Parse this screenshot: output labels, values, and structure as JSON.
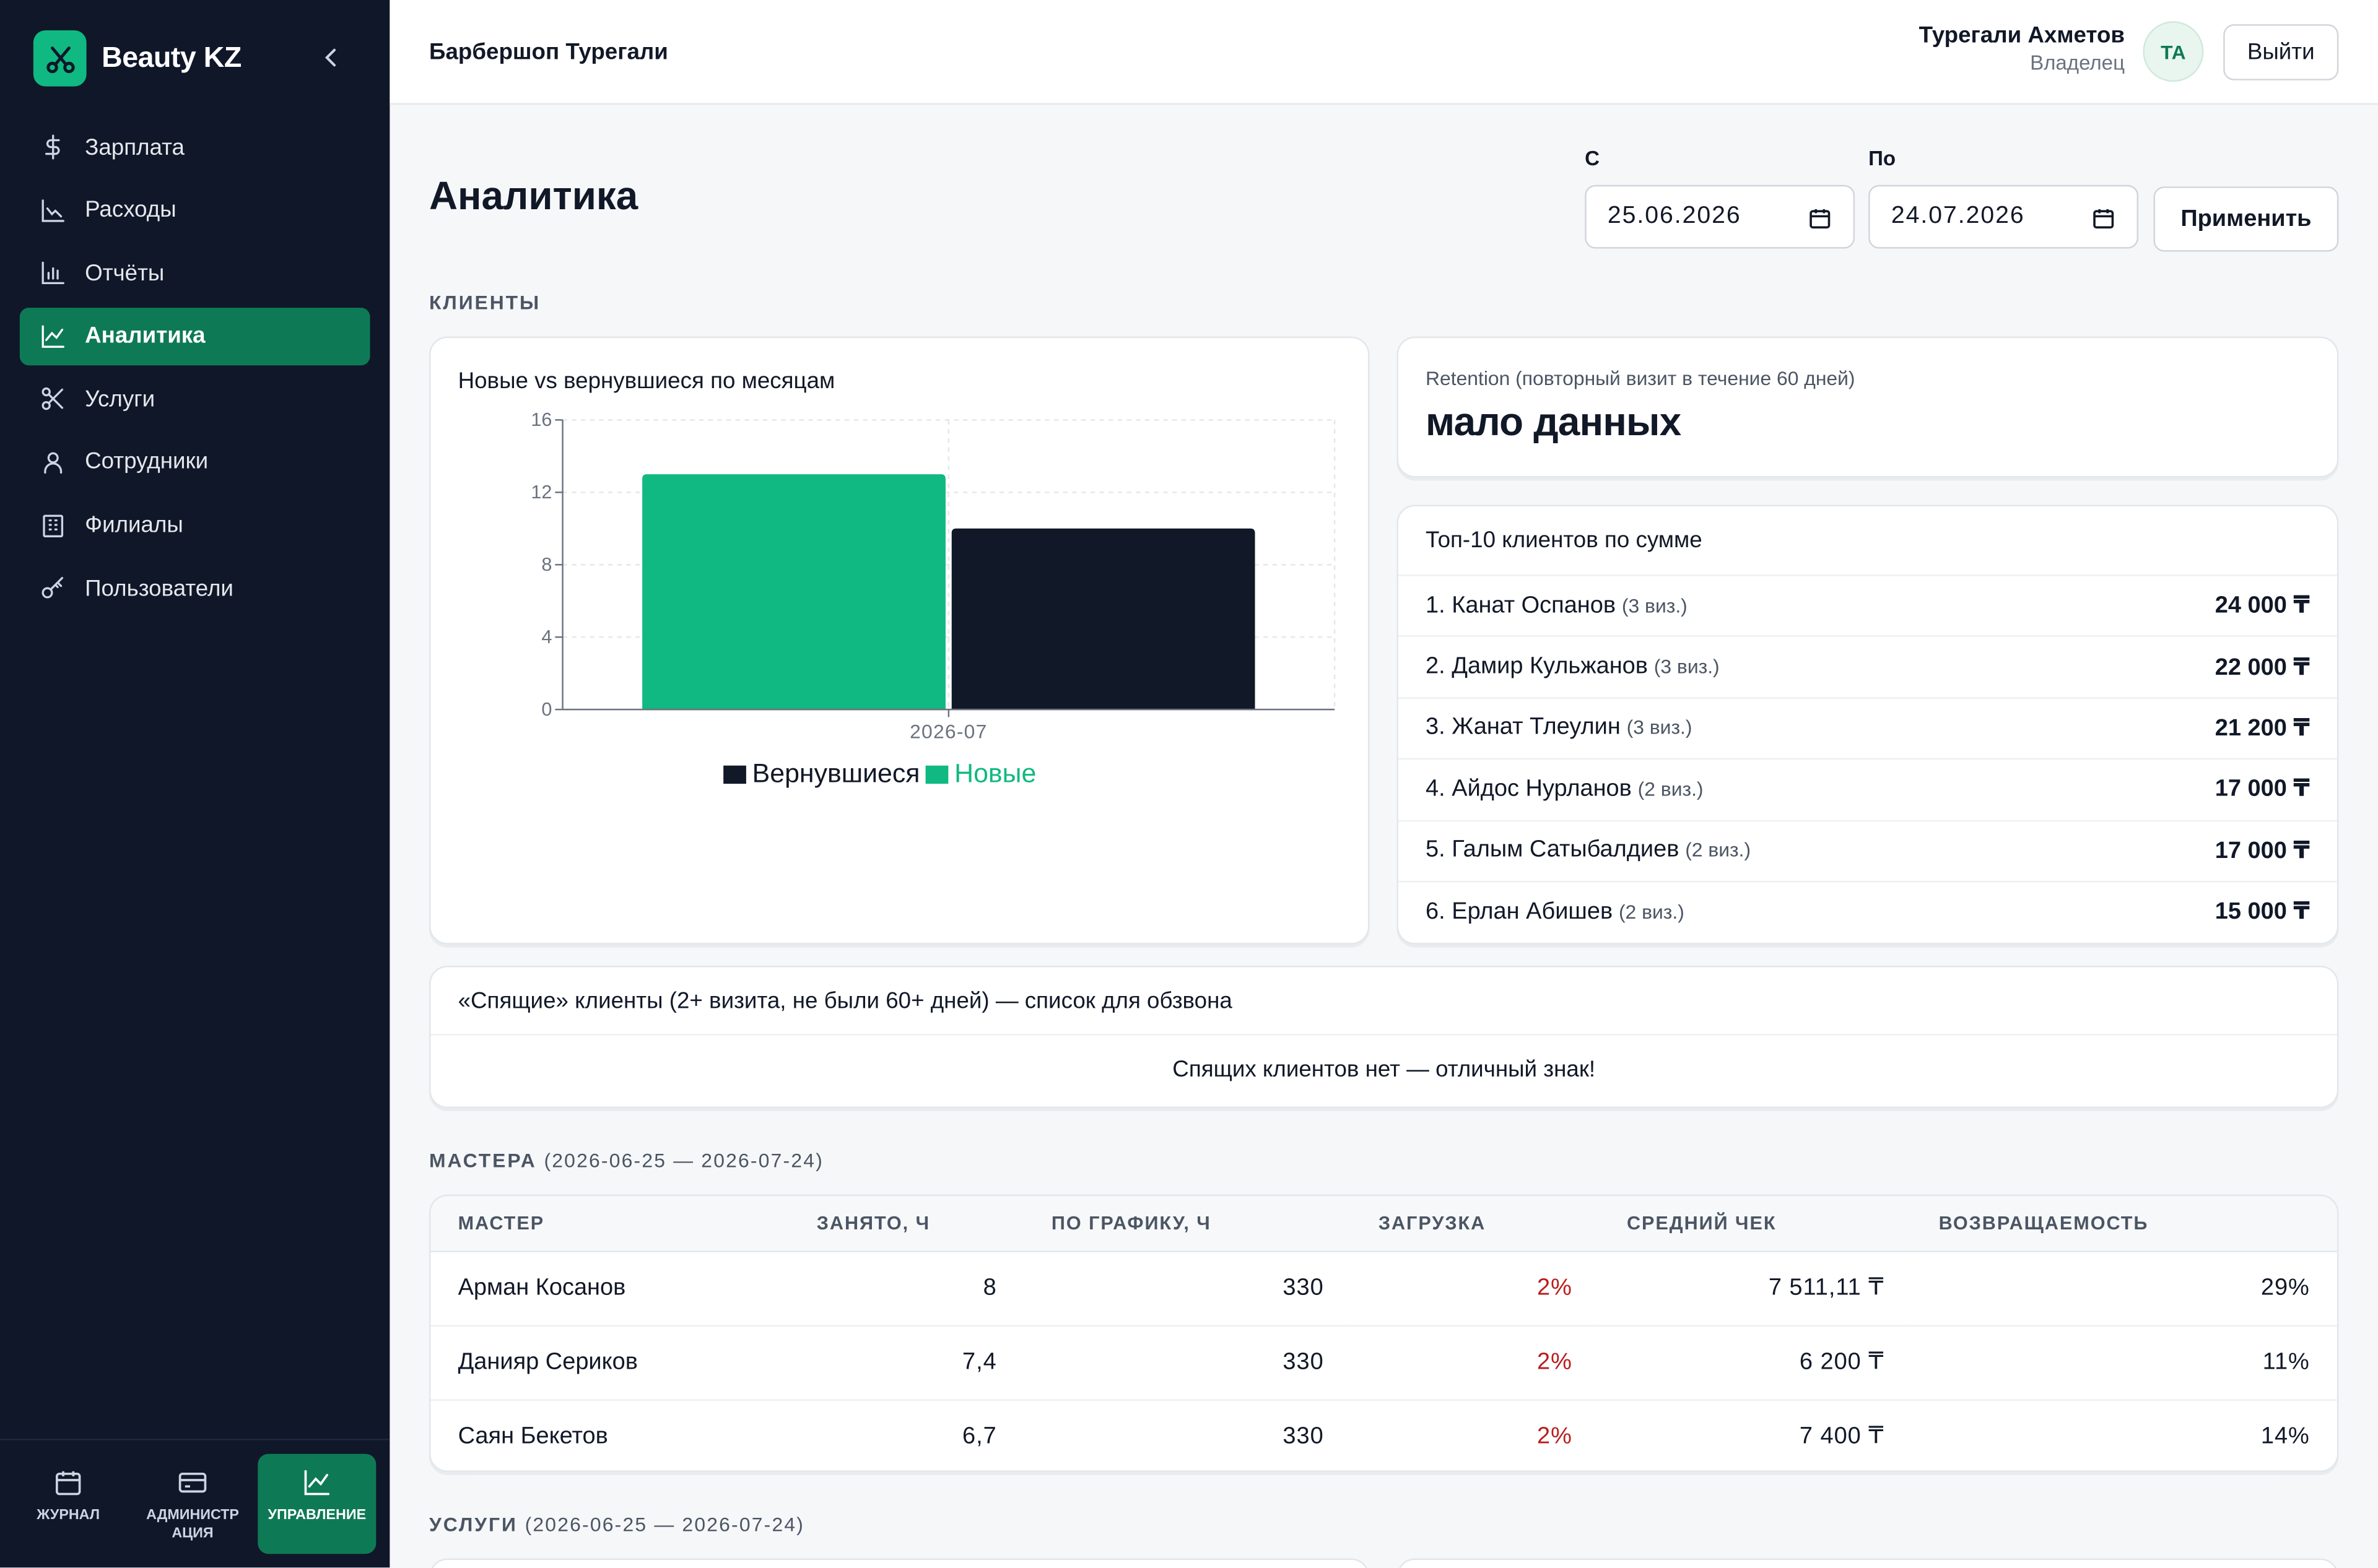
{
  "brand": {
    "name": "Beauty KZ"
  },
  "sidebar": {
    "items": [
      {
        "label": "Зарплата",
        "icon": "dollar-icon",
        "active": false
      },
      {
        "label": "Расходы",
        "icon": "trend-chart-icon",
        "active": false
      },
      {
        "label": "Отчёты",
        "icon": "bar-chart-icon",
        "active": false
      },
      {
        "label": "Аналитика",
        "icon": "line-chart-icon",
        "active": true
      },
      {
        "label": "Услуги",
        "icon": "scissors-icon",
        "active": false
      },
      {
        "label": "Сотрудники",
        "icon": "user-icon",
        "active": false
      },
      {
        "label": "Филиалы",
        "icon": "building-icon",
        "active": false
      },
      {
        "label": "Пользователи",
        "icon": "key-icon",
        "active": false
      }
    ],
    "bottom_tabs": [
      {
        "label": "ЖУРНАЛ",
        "icon": "calendar-icon",
        "active": false
      },
      {
        "label": "АДМИНИСТР АЦИЯ",
        "icon": "card-icon",
        "active": false
      },
      {
        "label": "УПРАВЛЕНИЕ",
        "icon": "line-chart-icon",
        "active": true
      }
    ]
  },
  "header": {
    "org_name": "Барбершоп Турегали",
    "user_name": "Турегали Ахметов",
    "user_role": "Владелец",
    "avatar_initials": "ТА",
    "logout_label": "Выйти"
  },
  "page": {
    "title": "Аналитика",
    "date_from_label": "С",
    "date_from_value": "25.06.2026",
    "date_to_label": "По",
    "date_to_value": "24.07.2026",
    "apply_label": "Применить"
  },
  "clients_section": {
    "title": "КЛИЕНТЫ",
    "chart_title": "Новые vs вернувшиеся по месяцам",
    "retention_label": "Retention (повторный визит в течение 60 дней)",
    "retention_value": "мало данных",
    "top_title": "Топ-10 клиентов по сумме",
    "top_clients": [
      {
        "name": "1. Канат Оспанов",
        "visits": "(3 виз.)",
        "amount": "24 000 ₸"
      },
      {
        "name": "2. Дамир Кульжанов",
        "visits": "(3 виз.)",
        "amount": "22 000 ₸"
      },
      {
        "name": "3. Жанат Тлеулин",
        "visits": "(3 виз.)",
        "amount": "21 200 ₸"
      },
      {
        "name": "4. Айдос Нурланов",
        "visits": "(2 виз.)",
        "amount": "17 000 ₸"
      },
      {
        "name": "5. Галым Сатыбалдиев",
        "visits": "(2 виз.)",
        "amount": "17 000 ₸"
      },
      {
        "name": "6. Ерлан Абишев",
        "visits": "(2 виз.)",
        "amount": "15 000 ₸"
      }
    ],
    "sleeping_title": "«Спящие» клиенты (2+ визита, не были 60+ дней) — список для обзвона",
    "sleeping_empty": "Спящих клиентов нет — отличный знак!"
  },
  "chart_data": {
    "type": "bar",
    "categories": [
      "2026-07"
    ],
    "series": [
      {
        "name": "Новые",
        "values": [
          13
        ],
        "color": "#10b981"
      },
      {
        "name": "Вернувшиеся",
        "values": [
          10
        ],
        "color": "#111827"
      }
    ],
    "ylim": [
      0,
      16
    ],
    "yticks": [
      0,
      4,
      8,
      12,
      16
    ],
    "legend_order": [
      "Вернувшиеся",
      "Новые"
    ],
    "legend_position": "bottom",
    "grid": true
  },
  "masters_section": {
    "title": "МАСТЕРА",
    "range": "(2026-06-25 — 2026-07-24)",
    "columns": [
      "МАСТЕР",
      "ЗАНЯТО, Ч",
      "ПО ГРАФИКУ, Ч",
      "ЗАГРУЗКА",
      "СРЕДНИЙ ЧЕК",
      "ВОЗВРАЩАЕМОСТЬ"
    ],
    "rows": [
      [
        "Арман Косанов",
        "8",
        "330",
        "2%",
        "7 511,11 ₸",
        "29%"
      ],
      [
        "Данияр Сериков",
        "7,4",
        "330",
        "2%",
        "6 200 ₸",
        "11%"
      ],
      [
        "Саян Бекетов",
        "6,7",
        "330",
        "2%",
        "7 400 ₸",
        "14%"
      ]
    ]
  },
  "services_section": {
    "title": "УСЛУГИ",
    "range": "(2026-06-25 — 2026-07-24)"
  },
  "colors": {
    "accent": "#10b981",
    "sidebar_bg": "#0f1729",
    "active_nav": "#0e7a55",
    "danger": "#b91c1c"
  }
}
